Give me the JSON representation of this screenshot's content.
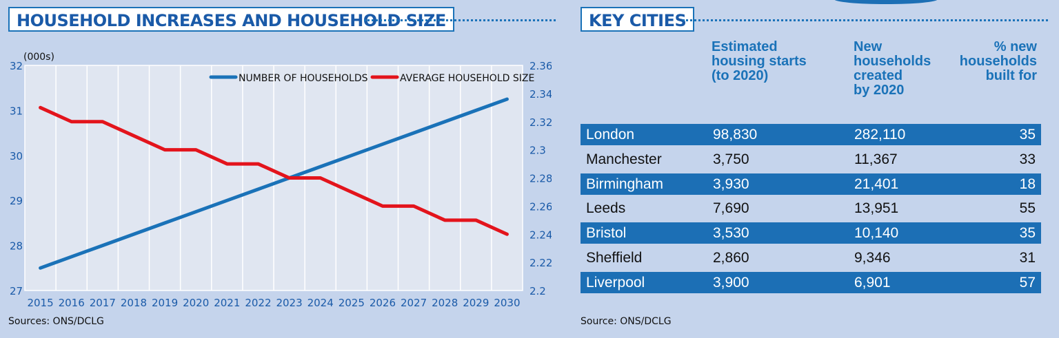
{
  "left_panel": {
    "title": "HOUSEHOLD INCREASES AND HOUSEHOLD SIZE",
    "source": "Sources: ONS/DCLG"
  },
  "right_panel": {
    "title": "KEY CITIES",
    "source": "Source: ONS/DCLG",
    "headers": [
      [
        "Estimated",
        "housing starts",
        "(to 2020)"
      ],
      [
        "New",
        "households",
        "created",
        "by 2020"
      ],
      [
        "% new",
        "households",
        "built for"
      ]
    ],
    "rows": [
      [
        "London",
        "98,830",
        "282,110",
        "35"
      ],
      [
        "Manchester",
        "3,750",
        "11,367",
        "33"
      ],
      [
        "Birmingham",
        "3,930",
        "21,401",
        "18"
      ],
      [
        "Leeds",
        "7,690",
        "13,951",
        "55"
      ],
      [
        "Bristol",
        "3,530",
        "10,140",
        "35"
      ],
      [
        "Sheffield",
        "2,860",
        "9,346",
        "31"
      ],
      [
        "Liverpool",
        "3,900",
        "6,901",
        "57"
      ]
    ]
  },
  "colors": {
    "background": "#c5d4ec",
    "plot_background": "#e0e6f1",
    "accent_blue": "#1c6fb5",
    "series_blue": "#1a72b8",
    "series_red": "#e3141c"
  },
  "chart_data": {
    "type": "line",
    "title": "HOUSEHOLD INCREASES AND HOUSEHOLD SIZE",
    "ylabel_left": "(000s)",
    "x": [
      "2015",
      "2016",
      "2017",
      "2018",
      "2019",
      "2020",
      "2021",
      "2022",
      "2023",
      "2024",
      "2025",
      "2026",
      "2027",
      "2028",
      "2029",
      "2030"
    ],
    "ylim_left": [
      27,
      32
    ],
    "yticks_left": [
      "27",
      "28",
      "29",
      "30",
      "31",
      "32"
    ],
    "ylim_right": [
      2.2,
      2.36
    ],
    "yticks_right": [
      "2.2",
      "2.22",
      "2.24",
      "2.26",
      "2.28",
      "2.3",
      "2.32",
      "2.34",
      "2.36"
    ],
    "grid": "vertical",
    "legend_position": "top-right",
    "series": [
      {
        "name": "NUMBER OF HOUSEHOLDS",
        "axis": "left",
        "color": "#1a72b8",
        "values": [
          27.5,
          27.75,
          28.0,
          28.25,
          28.5,
          28.75,
          29.0,
          29.25,
          29.5,
          29.75,
          30.0,
          30.25,
          30.5,
          30.75,
          31.0,
          31.25
        ]
      },
      {
        "name": "AVERAGE HOUSEHOLD SIZE",
        "axis": "right",
        "color": "#e3141c",
        "values": [
          2.33,
          2.32,
          2.32,
          2.31,
          2.3,
          2.3,
          2.29,
          2.29,
          2.28,
          2.28,
          2.27,
          2.26,
          2.26,
          2.25,
          2.25,
          2.24
        ]
      }
    ]
  }
}
